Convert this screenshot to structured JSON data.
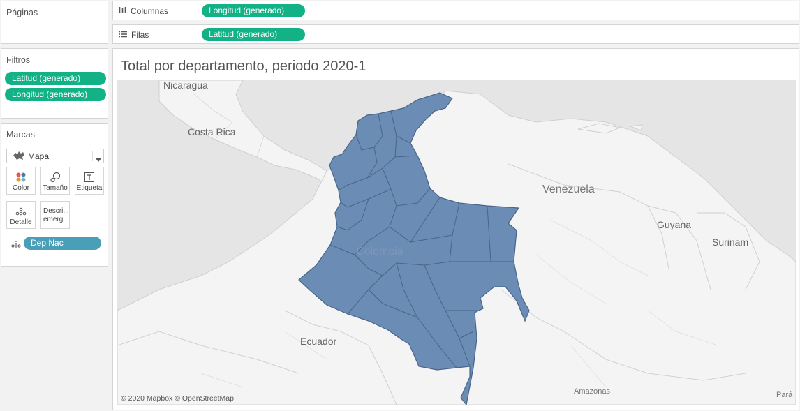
{
  "paginas": {
    "title": "Páginas"
  },
  "filtros": {
    "title": "Filtros",
    "pills": [
      "Latitud (generado)",
      "Longitud (generado)"
    ]
  },
  "marcas": {
    "title": "Marcas",
    "mark_type": "Mapa",
    "buttons": {
      "color": "Color",
      "size": "Tamaño",
      "label": "Etiqueta",
      "detail": "Detalle",
      "tooltip": "Descri... emerg..."
    },
    "field_pill": "Dep Nac"
  },
  "columnas": {
    "label": "Columnas",
    "pill": "Longitud (generado)"
  },
  "filas": {
    "label": "Filas",
    "pill": "Latitud (generado)"
  },
  "view": {
    "title": "Total por departamento, periodo 2020-1",
    "map_labels": {
      "nicaragua": "Nicaragua",
      "costa_rica": "Costa Rica",
      "venezuela": "Venezuela",
      "guyana": "Guyana",
      "surinam": "Surinam",
      "colombia": "Colombia",
      "ecuador": "Ecuador",
      "amazonas": "Amazonas",
      "para": "Pará"
    },
    "credit": "© 2020 Mapbox © OpenStreetMap",
    "colors": {
      "fill": "#6a8cb5",
      "stroke": "#4a6488",
      "land": "#f4f4f4",
      "water": "#e5e5e5",
      "accent": "#12b286"
    }
  }
}
